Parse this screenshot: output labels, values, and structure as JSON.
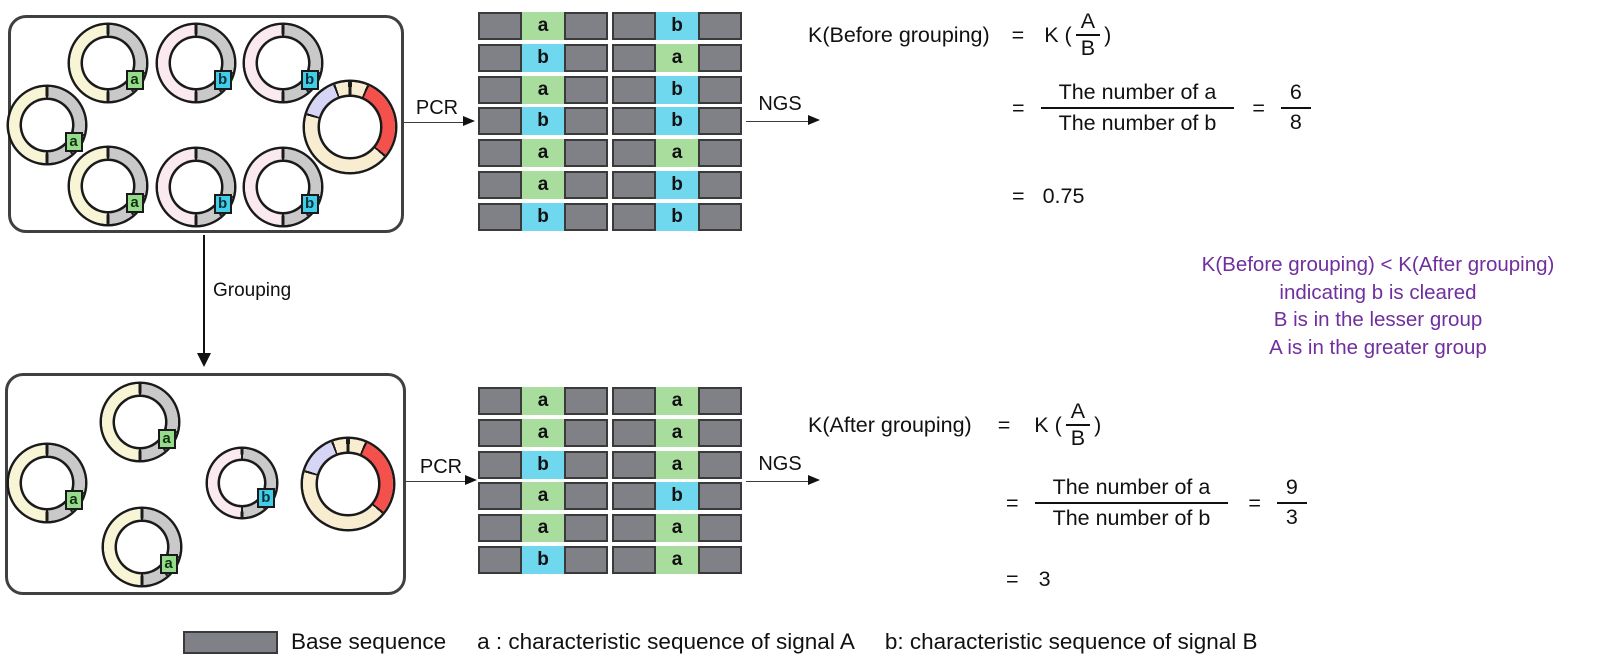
{
  "colors": {
    "text": "#111111",
    "purple": "#6F2F9F",
    "bar_gray": "#7f8186",
    "bar_border": "#3a3a3a",
    "cell_green": "#a9dd9e",
    "cell_cyan": "#6fd7ee",
    "chip_green": "#97db8c",
    "chip_cyan": "#44cde8",
    "ring_yellow": "#f7f5d6",
    "ring_pink": "#fae9ef",
    "ring_gray": "#c9c9c9",
    "ring_cream": "#f8edd0",
    "ring_red": "#f4514d",
    "ring_lavender": "#d7d5f5"
  },
  "before": {
    "plasmids": [
      "a",
      "b",
      "b",
      "a",
      "multi",
      "a",
      "b",
      "b"
    ],
    "pcr_label": "PCR",
    "ngs_label": "NGS",
    "reads_col1": [
      "a",
      "b",
      "a",
      "b",
      "a",
      "a",
      "b"
    ],
    "reads_col2": [
      "b",
      "a",
      "b",
      "b",
      "a",
      "b",
      "b"
    ],
    "formula": {
      "lhs": "K(Before grouping)",
      "eq": "=",
      "k_open": "K (",
      "k_close": ")",
      "frac_num": "A",
      "frac_den": "B",
      "count_num": "The number of a",
      "count_den": "The number of b",
      "value_num": "6",
      "value_den": "8",
      "result": "0.75"
    }
  },
  "grouping_label": "Grouping",
  "after": {
    "plasmids": [
      "a",
      "a",
      "a",
      "b",
      "multi"
    ],
    "pcr_label": "PCR",
    "ngs_label": "NGS",
    "reads_col1": [
      "a",
      "a",
      "b",
      "a",
      "a",
      "b"
    ],
    "reads_col2": [
      "a",
      "a",
      "a",
      "b",
      "a",
      "a"
    ],
    "formula": {
      "lhs": "K(After grouping)",
      "eq": "=",
      "k_open": "K (",
      "k_close": ")",
      "frac_num": "A",
      "frac_den": "B",
      "count_num": "The number of a",
      "count_den": "The number of b",
      "value_num": "9",
      "value_den": "3",
      "result": "3"
    }
  },
  "conclusion_lines": [
    "K(Before grouping) <  K(After grouping)",
    "indicating b is cleared",
    "B is in the lesser group",
    "A is in the greater group"
  ],
  "legend": {
    "base_label": "Base sequence",
    "a_label": "a :  characteristic sequence of signal A",
    "b_label": "b: characteristic sequence of signal B"
  }
}
